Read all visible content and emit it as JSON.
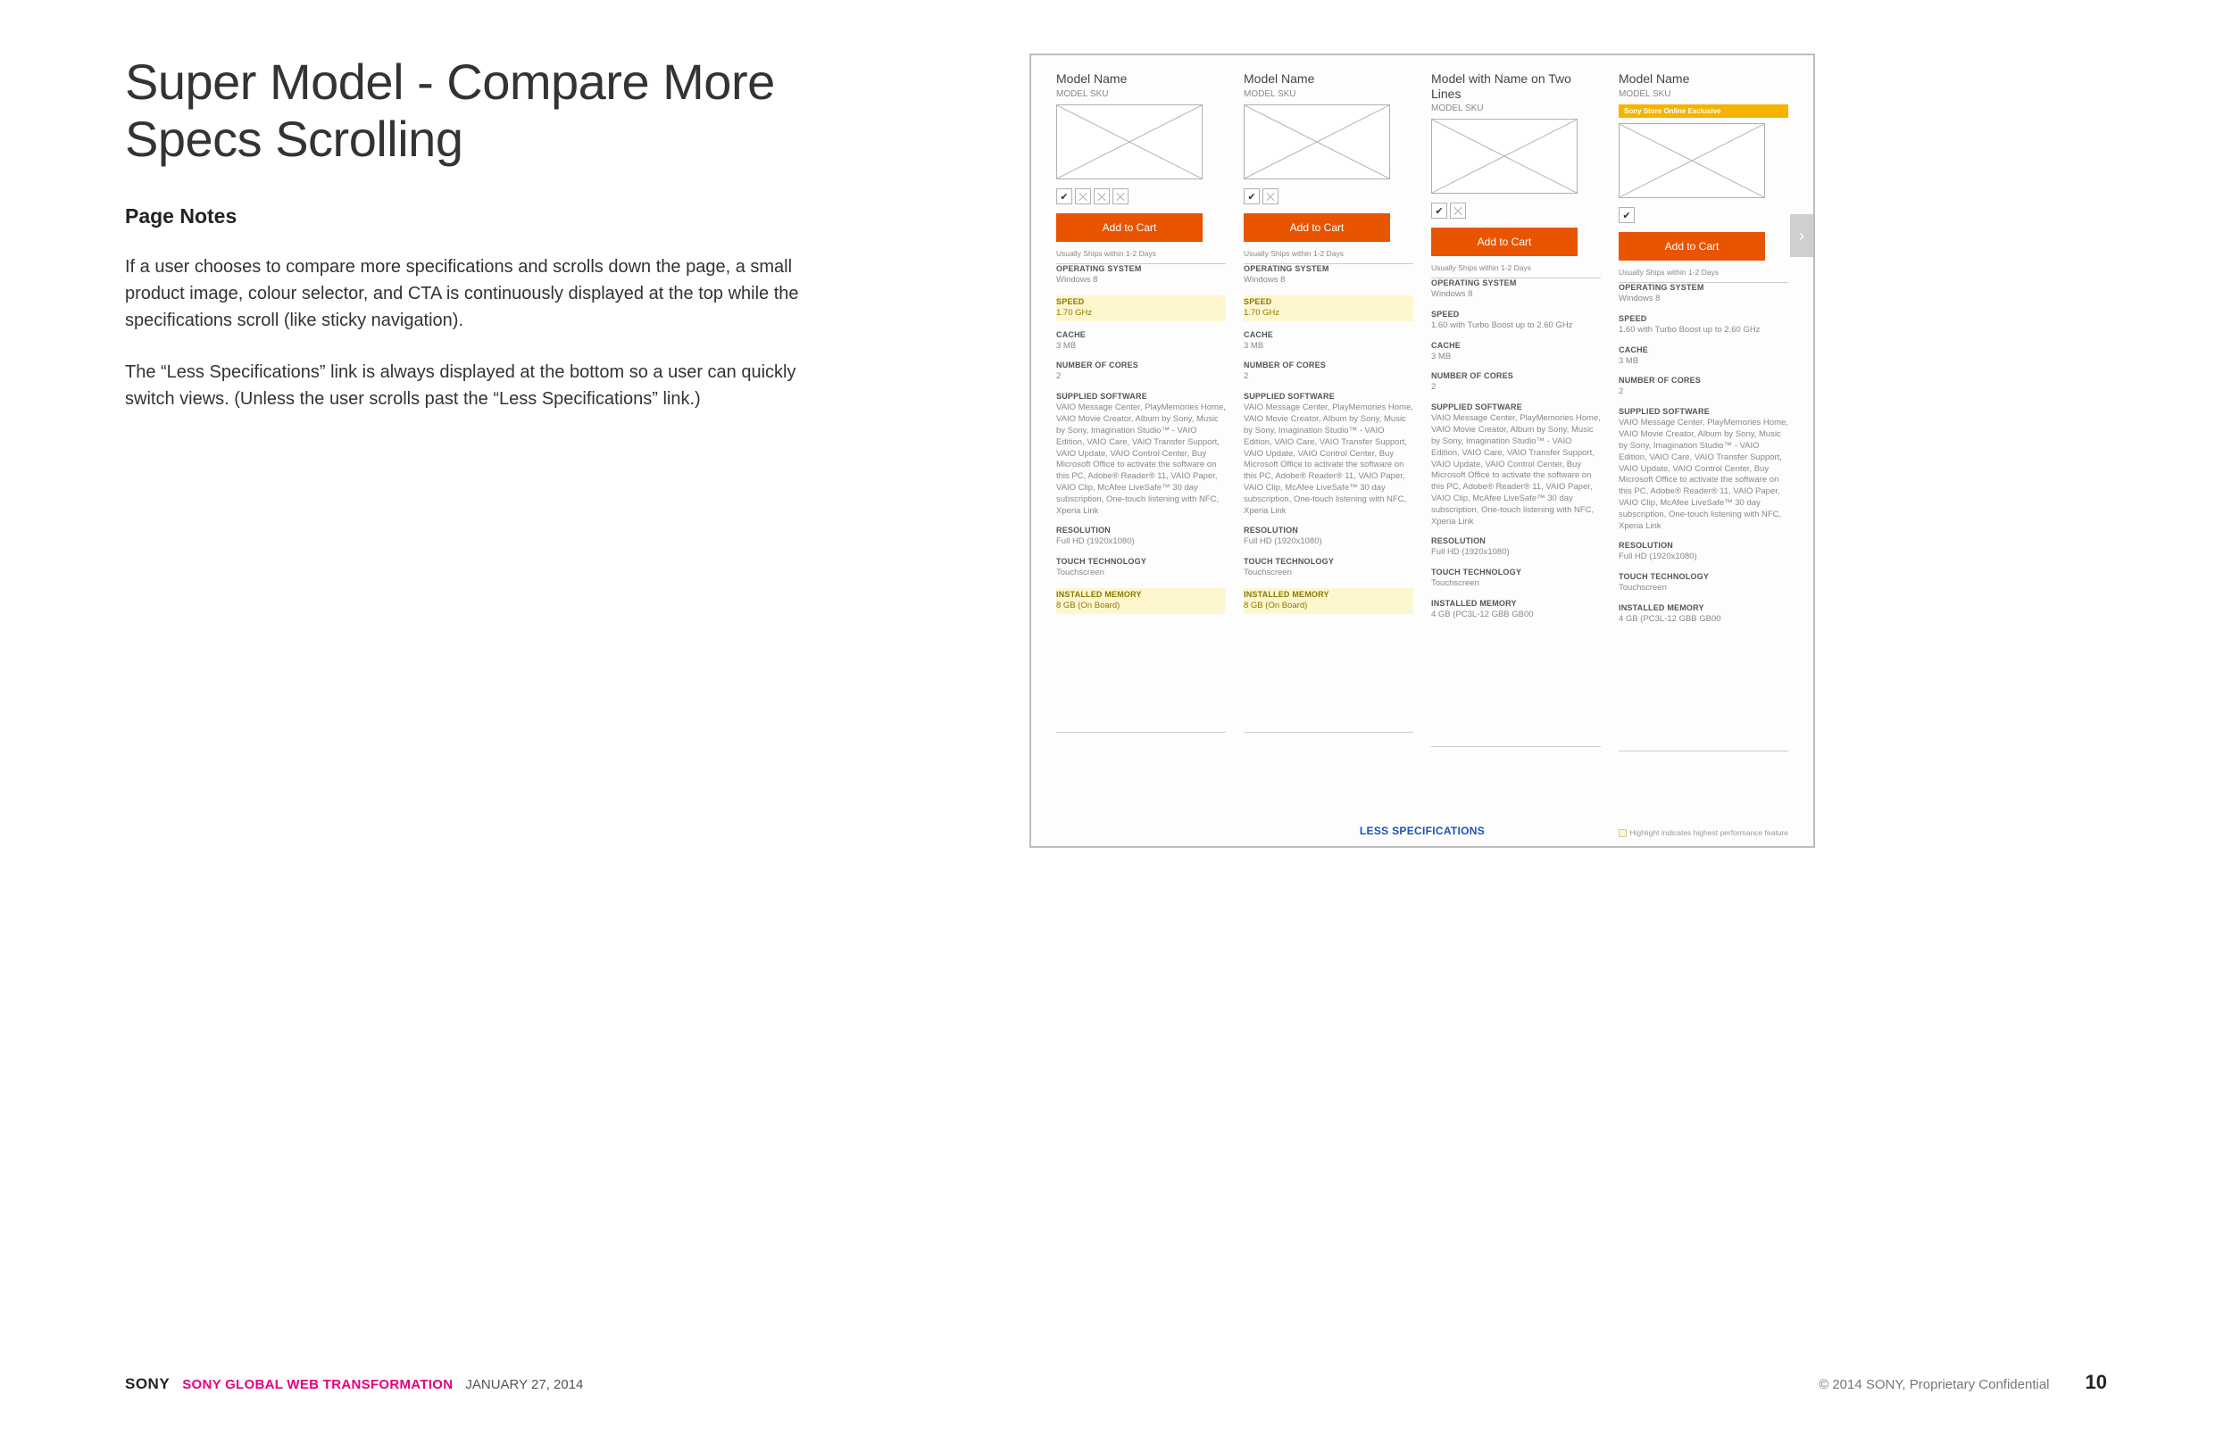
{
  "page": {
    "title": "Super Model - Compare More Specs Scrolling",
    "section_heading": "Page Notes",
    "para1": "If a user chooses to compare more specifications and scrolls down the page, a small product image, colour selector, and CTA is continuously displayed at the top while the specifications scroll (like sticky navigation).",
    "para2": "The “Less Specifications” link is always displayed at the bottom so a user can quickly switch views. (Unless the user scrolls past the “Less Specifications” link.)"
  },
  "colors": {
    "cta_bg": "#e85400",
    "cta_text": "#ffffff",
    "highlight_bg": "#fdf6cf",
    "highlight_text": "#8a7a00",
    "exclusive_bg": "#f5b300",
    "link_blue": "#1a54b3",
    "panel_border": "#bdbdbd",
    "thumb_border": "#b0b0b0",
    "footer_accent": "#e6007e"
  },
  "compare": {
    "less_specs_label": "LESS SPECIFICATIONS",
    "highlight_note": "Highlight indicates highest performance feature",
    "scroll_arrow": "›",
    "products": [
      {
        "name": "Model Name",
        "sku": "MODEL SKU",
        "exclusive_tag": null,
        "swatch_count": 4,
        "cta": "Add to Cart",
        "ship": "Usually Ships within 1-2 Days"
      },
      {
        "name": "Model Name",
        "sku": "MODEL SKU",
        "exclusive_tag": null,
        "swatch_count": 2,
        "cta": "Add to Cart",
        "ship": "Usually Ships within 1-2 Days"
      },
      {
        "name": "Model with Name on Two Lines",
        "sku": "MODEL SKU",
        "exclusive_tag": null,
        "swatch_count": 2,
        "cta": "Add to Cart",
        "ship": "Usually Ships within 1-2 Days"
      },
      {
        "name": "Model Name",
        "sku": "MODEL SKU",
        "exclusive_tag": "Sony Store Online Exclusive",
        "swatch_count": 1,
        "cta": "Add to Cart",
        "ship": "Usually Ships within 1-2 Days"
      }
    ],
    "spec_rows": [
      {
        "label": "OPERATING SYSTEM",
        "partial_top": true,
        "values": [
          "Windows 8",
          "Windows 8",
          "Windows 8",
          "Windows 8"
        ],
        "highlight": [
          false,
          false,
          false,
          false
        ]
      },
      {
        "label": "SPEED",
        "values": [
          "1.70 GHz",
          "1.70 GHz",
          "1.60 with Turbo Boost up to 2.60 GHz",
          "1.60 with Turbo Boost up to 2.60 GHz"
        ],
        "highlight": [
          true,
          true,
          false,
          false
        ]
      },
      {
        "label": "CACHE",
        "values": [
          "3 MB",
          "3 MB",
          "3 MB",
          "3 MB"
        ],
        "highlight": [
          false,
          false,
          false,
          false
        ]
      },
      {
        "label": "NUMBER OF CORES",
        "values": [
          "2",
          "2",
          "2",
          "2"
        ],
        "highlight": [
          false,
          false,
          false,
          false
        ]
      },
      {
        "label": "SUPPLIED SOFTWARE",
        "values": [
          "VAIO Message Center, PlayMemories Home, VAIO Movie Creator, Album by Sony, Music by Sony, Imagination Studio™ - VAIO Edition, VAIO Care, VAIO Transfer Support, VAIO Update, VAIO Control Center, Buy Microsoft Office to activate the software on this PC, Adobe® Reader® 11, VAIO Paper, VAIO Clip, McAfee LiveSafe™ 30 day subscription, One-touch listening with NFC, Xperia Link",
          "VAIO Message Center, PlayMemories Home, VAIO Movie Creator, Album by Sony, Music by Sony, Imagination Studio™ - VAIO Edition, VAIO Care, VAIO Transfer Support, VAIO Update, VAIO Control Center, Buy Microsoft Office to activate the software on this PC, Adobe® Reader® 11, VAIO Paper, VAIO Clip, McAfee LiveSafe™ 30 day subscription, One-touch listening with NFC, Xperia Link",
          "VAIO Message Center, PlayMemories Home, VAIO Movie Creator, Album by Sony, Music by Sony, Imagination Studio™ - VAIO Edition, VAIO Care, VAIO Transfer Support, VAIO Update, VAIO Control Center, Buy Microsoft Office to activate the software on this PC, Adobe® Reader® 11, VAIO Paper, VAIO Clip, McAfee LiveSafe™ 30 day subscription, One-touch listening with NFC, Xperia Link",
          "VAIO Message Center, PlayMemories Home, VAIO Movie Creator, Album by Sony, Music by Sony, Imagination Studio™ - VAIO Edition, VAIO Care, VAIO Transfer Support, VAIO Update, VAIO Control Center, Buy Microsoft Office to activate the software on this PC, Adobe® Reader® 11, VAIO Paper, VAIO Clip, McAfee LiveSafe™ 30 day subscription, One-touch listening with NFC, Xperia Link"
        ],
        "highlight": [
          false,
          false,
          false,
          false
        ]
      },
      {
        "label": "RESOLUTION",
        "values": [
          "Full HD (1920x1080)",
          "Full HD (1920x1080)",
          "Full HD (1920x1080)",
          "Full HD (1920x1080)"
        ],
        "highlight": [
          false,
          false,
          false,
          false
        ]
      },
      {
        "label": "TOUCH TECHNOLOGY",
        "values": [
          "Touchscreen",
          "Touchscreen",
          "Touchscreen",
          "Touchscreen"
        ],
        "highlight": [
          false,
          false,
          false,
          false
        ]
      },
      {
        "label": "INSTALLED MEMORY",
        "values": [
          "8 GB (On Board)",
          "8 GB (On Board)",
          "4 GB (PC3L-12 GBB GB00",
          "4 GB (PC3L-12 GBB GB00"
        ],
        "highlight": [
          true,
          true,
          false,
          false
        ]
      }
    ]
  },
  "footer": {
    "brand": "SONY",
    "project": "SONY GLOBAL WEB TRANSFORMATION",
    "date": "JANUARY 27, 2014",
    "confidential": "© 2014 SONY, Proprietary Confidential",
    "page_number": "10"
  }
}
